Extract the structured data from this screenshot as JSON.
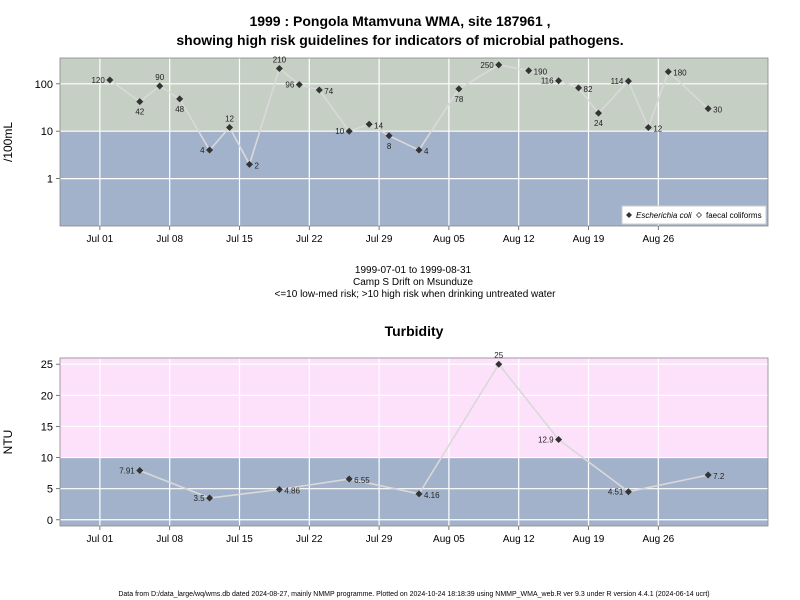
{
  "title_line1": "1999 : Pongola Mtamvuna WMA, site 187961 ,",
  "title_line2": "showing high risk guidelines for indicators of microbial pathogens.",
  "subtitle": [
    "1999-07-01 to 1999-08-31",
    "Camp S Drift on Msunduze",
    "<=10 low-med risk; >10 high risk when drinking untreated water"
  ],
  "footer": "Data from D:/data_large/wq/wms.db dated 2024-08-27, mainly NMMP programme. Plotted on 2024-10-24 18:18:39 using NMMP_WMA_web.R ver 9.3 under R version 4.4.1 (2024-06-14 ucrt)",
  "chart_data": [
    {
      "type": "line",
      "title": "",
      "ylabel": "/100mL",
      "yscale": "log",
      "x_range": [
        "1999-06-27",
        "1999-09-06"
      ],
      "ylim": [
        0.1,
        350
      ],
      "y_ticks": [
        {
          "v": 1,
          "label": "1"
        },
        {
          "v": 10,
          "label": "10"
        },
        {
          "v": 100,
          "label": "100"
        }
      ],
      "x_ticks": [
        "Jul 01",
        "Jul 08",
        "Jul 15",
        "Jul 22",
        "Jul 29",
        "Aug 05",
        "Aug 12",
        "Aug 19",
        "Aug 26"
      ],
      "x_tick_dates": [
        "1999-07-01",
        "1999-07-08",
        "1999-07-15",
        "1999-07-22",
        "1999-07-29",
        "1999-08-05",
        "1999-08-12",
        "1999-08-19",
        "1999-08-26"
      ],
      "threshold": 10,
      "band_colors": {
        "above": "#c5cfc4",
        "below": "#a3b2cb"
      },
      "line_color": "#d9d9d9",
      "point_color": "#333333",
      "series": [
        {
          "name": "Escherichia coli",
          "points": [
            {
              "x": "1999-07-02",
              "y": 120,
              "label": "120",
              "pos": "left"
            },
            {
              "x": "1999-07-05",
              "y": 42,
              "label": "42",
              "pos": "below"
            },
            {
              "x": "1999-07-07",
              "y": 90,
              "label": "90",
              "pos": "above"
            },
            {
              "x": "1999-07-09",
              "y": 48,
              "label": "48",
              "pos": "below"
            },
            {
              "x": "1999-07-12",
              "y": 4,
              "label": "4",
              "pos": "left"
            },
            {
              "x": "1999-07-14",
              "y": 12,
              "label": "12",
              "pos": "above"
            },
            {
              "x": "1999-07-16",
              "y": 2,
              "label": "2",
              "pos": "right"
            },
            {
              "x": "1999-07-19",
              "y": 210,
              "label": "210",
              "pos": "above"
            },
            {
              "x": "1999-07-21",
              "y": 96,
              "label": "96",
              "pos": "left"
            },
            {
              "x": "1999-07-23",
              "y": 74,
              "label": "74",
              "pos": "right"
            },
            {
              "x": "1999-07-26",
              "y": 10,
              "label": "10",
              "pos": "left"
            },
            {
              "x": "1999-07-28",
              "y": 14,
              "label": "14",
              "pos": "right"
            },
            {
              "x": "1999-07-30",
              "y": 8,
              "label": "8",
              "pos": "below"
            },
            {
              "x": "1999-08-02",
              "y": 4,
              "label": "4",
              "pos": "right"
            },
            {
              "x": "1999-08-06",
              "y": 78,
              "label": "78",
              "pos": "below"
            },
            {
              "x": "1999-08-10",
              "y": 250,
              "label": "250",
              "pos": "left"
            },
            {
              "x": "1999-08-13",
              "y": 190,
              "label": "190",
              "pos": "right"
            },
            {
              "x": "1999-08-16",
              "y": 116,
              "label": "116",
              "pos": "left"
            },
            {
              "x": "1999-08-18",
              "y": 82,
              "label": "82",
              "pos": "right"
            },
            {
              "x": "1999-08-20",
              "y": 24,
              "label": "24",
              "pos": "below"
            },
            {
              "x": "1999-08-23",
              "y": 114,
              "label": "114",
              "pos": "left"
            },
            {
              "x": "1999-08-25",
              "y": 12,
              "label": "12",
              "pos": "right"
            },
            {
              "x": "1999-08-27",
              "y": 180,
              "label": "180",
              "pos": "right"
            },
            {
              "x": "1999-08-31",
              "y": 30,
              "label": "30",
              "pos": "right"
            }
          ]
        },
        {
          "name": "faecal coliforms",
          "points": []
        }
      ],
      "legend": {
        "position": "bottom-right",
        "items": [
          {
            "name": "Escherichia coli",
            "italic": true,
            "marker": "diamond-filled"
          },
          {
            "name": "faecal coliforms",
            "italic": false,
            "marker": "diamond-open"
          }
        ]
      }
    },
    {
      "type": "line",
      "title": "Turbidity",
      "ylabel": "NTU",
      "x_range": [
        "1999-06-27",
        "1999-09-06"
      ],
      "ylim": [
        -1,
        26
      ],
      "y_ticks": [
        {
          "v": 0,
          "label": "0"
        },
        {
          "v": 5,
          "label": "5"
        },
        {
          "v": 10,
          "label": "10"
        },
        {
          "v": 15,
          "label": "15"
        },
        {
          "v": 20,
          "label": "20"
        },
        {
          "v": 25,
          "label": "25"
        }
      ],
      "x_ticks": [
        "Jul 01",
        "Jul 08",
        "Jul 15",
        "Jul 22",
        "Jul 29",
        "Aug 05",
        "Aug 12",
        "Aug 19",
        "Aug 26"
      ],
      "x_tick_dates": [
        "1999-07-01",
        "1999-07-08",
        "1999-07-15",
        "1999-07-22",
        "1999-07-29",
        "1999-08-05",
        "1999-08-12",
        "1999-08-19",
        "1999-08-26"
      ],
      "threshold": 10,
      "band_colors": {
        "above": "#fde1fb",
        "below": "#a3b2cb"
      },
      "line_color": "#d9d9d9",
      "point_color": "#333333",
      "series": [
        {
          "points": [
            {
              "x": "1999-07-05",
              "y": 7.91,
              "label": "7.91",
              "pos": "left"
            },
            {
              "x": "1999-07-12",
              "y": 3.5,
              "label": "3.5",
              "pos": "left"
            },
            {
              "x": "1999-07-19",
              "y": 4.86,
              "label": "4.86",
              "pos": "right"
            },
            {
              "x": "1999-07-26",
              "y": 6.55,
              "label": "6.55",
              "pos": "right"
            },
            {
              "x": "1999-08-02",
              "y": 4.16,
              "label": "4.16",
              "pos": "right"
            },
            {
              "x": "1999-08-10",
              "y": 25,
              "label": "25",
              "pos": "above"
            },
            {
              "x": "1999-08-16",
              "y": 12.9,
              "label": "12.9",
              "pos": "left"
            },
            {
              "x": "1999-08-23",
              "y": 4.51,
              "label": "4.51",
              "pos": "left"
            },
            {
              "x": "1999-08-31",
              "y": 7.2,
              "label": "7.2",
              "pos": "right"
            }
          ]
        }
      ]
    }
  ]
}
